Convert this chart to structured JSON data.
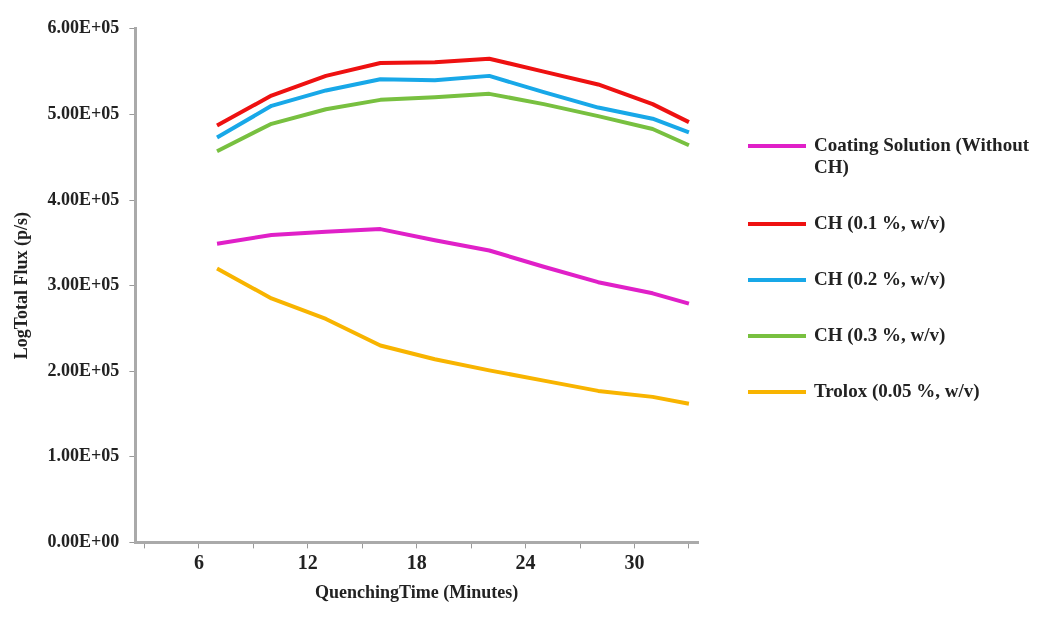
{
  "chart_data": {
    "type": "line",
    "xlabel": "QuenchingTime (Minutes)",
    "ylabel": "LogTotal Flux (p/s)",
    "xlim": [
      2.5,
      33.5
    ],
    "xticks": [
      {
        "value": 3,
        "label": null
      },
      6,
      {
        "value": 9,
        "label": null
      },
      12,
      {
        "value": 15,
        "label": null
      },
      18,
      {
        "value": 21,
        "label": null
      },
      24,
      {
        "value": 27,
        "label": null
      },
      30,
      {
        "value": 33,
        "label": null
      }
    ],
    "ylim": [
      0,
      600000
    ],
    "yticks": [
      {
        "value": 0,
        "label": "0.00E+00"
      },
      {
        "value": 100000,
        "label": "1.00E+05"
      },
      {
        "value": 200000,
        "label": "2.00E+05"
      },
      {
        "value": 300000,
        "label": "3.00E+05"
      },
      {
        "value": 400000,
        "label": "4.00E+05"
      },
      {
        "value": 500000,
        "label": "5.00E+05"
      },
      {
        "value": 600000,
        "label": "6.00E+05"
      }
    ],
    "grid": false,
    "legend": "right",
    "marker": "none",
    "line_style": "solid",
    "x": [
      7,
      10,
      13,
      16,
      19,
      22,
      25,
      28,
      31,
      33
    ],
    "series": [
      {
        "name": "Coating Solution (Without CH)",
        "color": "#e020c8",
        "values": [
          349000,
          359000,
          363000,
          366000,
          353000,
          341000,
          322000,
          304000,
          291000,
          279000
        ]
      },
      {
        "name": "CH (0.1 %, w/v)",
        "color": "#ee1111",
        "values": [
          487000,
          522000,
          545000,
          560000,
          561000,
          565000,
          550000,
          535000,
          512000,
          491000
        ]
      },
      {
        "name": "CH (0.2 %, w/v)",
        "color": "#18a8e8",
        "values": [
          473000,
          510000,
          528000,
          541000,
          540000,
          545000,
          526000,
          508000,
          495000,
          479000
        ]
      },
      {
        "name": "CH (0.3 %, w/v)",
        "color": "#78c040",
        "values": [
          457000,
          489000,
          506000,
          517000,
          520000,
          524000,
          512000,
          498000,
          483000,
          464000
        ]
      },
      {
        "name": "Trolox (0.05 %, w/v)",
        "color": "#f8b400",
        "values": [
          320000,
          285000,
          261000,
          230000,
          214000,
          201000,
          189000,
          177000,
          170000,
          162000
        ]
      }
    ]
  }
}
